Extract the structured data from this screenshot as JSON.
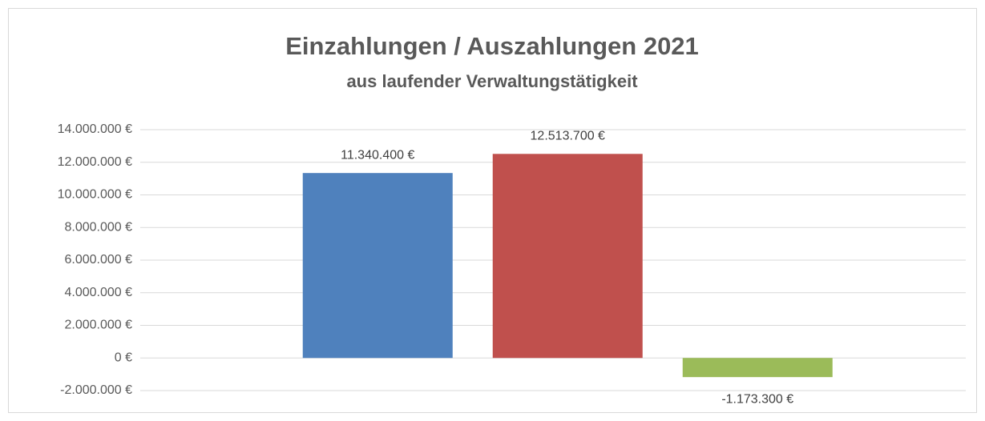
{
  "chart_data": {
    "type": "bar",
    "title": "Einzahlungen / Auszahlungen 2021",
    "subtitle": "aus laufender Verwaltungstätigkeit",
    "categories": [
      null,
      null,
      null
    ],
    "values": [
      11340400,
      12513700,
      -1173300
    ],
    "value_labels": [
      "11.340.400 €",
      "12.513.700 €",
      "-1.173.300 €"
    ],
    "colors": [
      "#4f81bd",
      "#c0504d",
      "#9bbb59"
    ],
    "ylim": [
      -2000000,
      14000000
    ],
    "yticks": [
      {
        "value": -2000000,
        "label": "-2.000.000 €"
      },
      {
        "value": 0,
        "label": "0 €"
      },
      {
        "value": 2000000,
        "label": "2.000.000 €"
      },
      {
        "value": 4000000,
        "label": "4.000.000 €"
      },
      {
        "value": 6000000,
        "label": "6.000.000 €"
      },
      {
        "value": 8000000,
        "label": "8.000.000 €"
      },
      {
        "value": 10000000,
        "label": "10.000.000 €"
      },
      {
        "value": 12000000,
        "label": "12.000.000 €"
      },
      {
        "value": 14000000,
        "label": "14.000.000 €"
      }
    ],
    "grid": true
  }
}
